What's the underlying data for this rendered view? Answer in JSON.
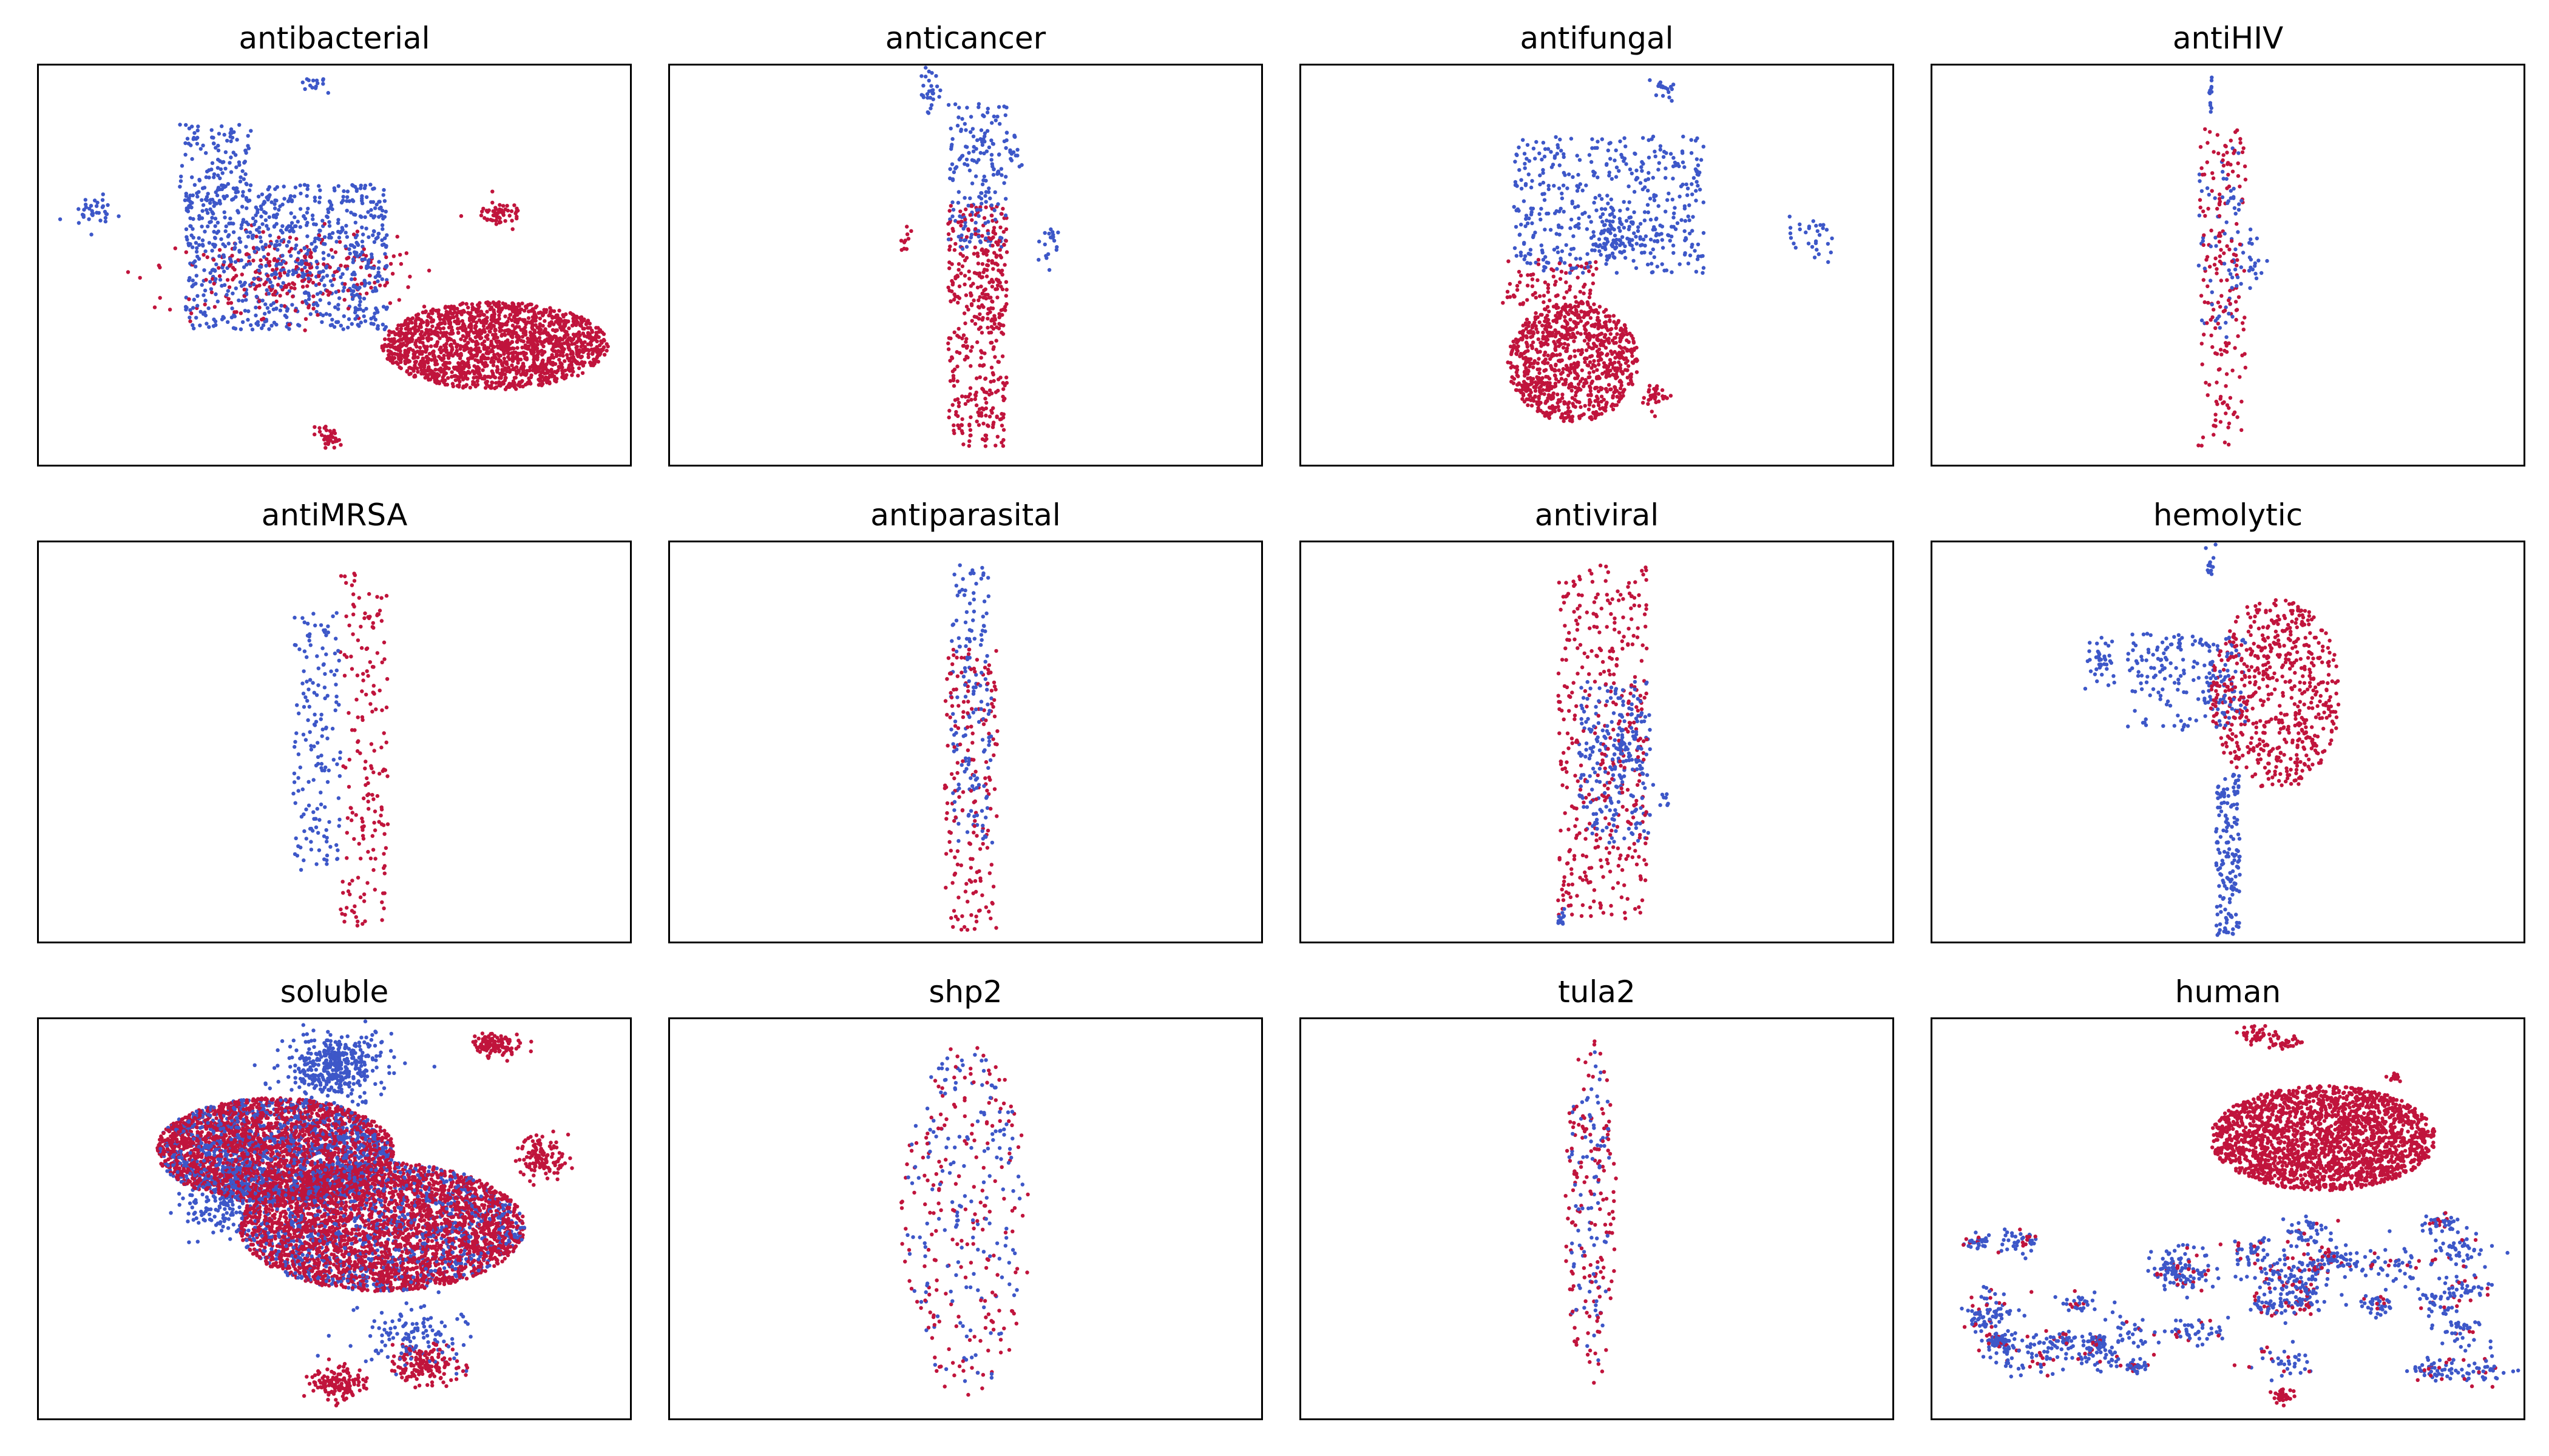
{
  "colors": {
    "positive": "#c0143c",
    "negative": "#3d57c8"
  },
  "chart_data": [
    {
      "type": "scatter",
      "title": "antibacterial",
      "grid": false,
      "axes_ticks": false,
      "clusters": [
        {
          "cls": "negative",
          "cx": 0.42,
          "cy": 0.52,
          "sx": 0.17,
          "sy": 0.18,
          "n": 800,
          "dist": "uniform"
        },
        {
          "cls": "positive",
          "cx": 0.42,
          "cy": 0.48,
          "sx": 0.09,
          "sy": 0.05,
          "n": 260,
          "dist": "gauss"
        },
        {
          "cls": "positive",
          "cx": 0.77,
          "cy": 0.3,
          "sx": 0.19,
          "sy": 0.11,
          "n": 1700,
          "dist": "ellipse"
        },
        {
          "cls": "negative",
          "cx": 0.1,
          "cy": 0.63,
          "sx": 0.02,
          "sy": 0.015,
          "n": 35,
          "dist": "gauss"
        },
        {
          "cls": "negative",
          "cx": 0.47,
          "cy": 0.95,
          "sx": 0.01,
          "sy": 0.01,
          "n": 15,
          "dist": "gauss"
        },
        {
          "cls": "positive",
          "cx": 0.78,
          "cy": 0.63,
          "sx": 0.015,
          "sy": 0.015,
          "n": 60,
          "dist": "gauss"
        },
        {
          "cls": "positive",
          "cx": 0.49,
          "cy": 0.07,
          "sx": 0.01,
          "sy": 0.015,
          "n": 40,
          "dist": "gauss"
        },
        {
          "cls": "negative",
          "cx": 0.3,
          "cy": 0.75,
          "sx": 0.06,
          "sy": 0.1,
          "n": 120,
          "dist": "uniform"
        }
      ]
    },
    {
      "type": "scatter",
      "title": "anticancer",
      "grid": false,
      "axes_ticks": false,
      "clusters": [
        {
          "cls": "positive",
          "cx": 0.52,
          "cy": 0.35,
          "sx": 0.05,
          "sy": 0.3,
          "n": 420,
          "dist": "uniform"
        },
        {
          "cls": "negative",
          "cx": 0.52,
          "cy": 0.72,
          "sx": 0.05,
          "sy": 0.18,
          "n": 180,
          "dist": "uniform"
        },
        {
          "cls": "negative",
          "cx": 0.44,
          "cy": 0.93,
          "sx": 0.008,
          "sy": 0.03,
          "n": 30,
          "dist": "gauss"
        },
        {
          "cls": "negative",
          "cx": 0.64,
          "cy": 0.55,
          "sx": 0.01,
          "sy": 0.03,
          "n": 20,
          "dist": "gauss"
        },
        {
          "cls": "positive",
          "cx": 0.4,
          "cy": 0.56,
          "sx": 0.005,
          "sy": 0.02,
          "n": 10,
          "dist": "gauss"
        },
        {
          "cls": "negative",
          "cx": 0.58,
          "cy": 0.78,
          "sx": 0.008,
          "sy": 0.02,
          "n": 15,
          "dist": "gauss"
        }
      ]
    },
    {
      "type": "scatter",
      "title": "antifungal",
      "grid": false,
      "axes_ticks": false,
      "clusters": [
        {
          "cls": "negative",
          "cx": 0.52,
          "cy": 0.65,
          "sx": 0.16,
          "sy": 0.17,
          "n": 450,
          "dist": "uniform"
        },
        {
          "cls": "negative",
          "cx": 0.53,
          "cy": 0.58,
          "sx": 0.03,
          "sy": 0.03,
          "n": 70,
          "dist": "gauss"
        },
        {
          "cls": "positive",
          "cx": 0.46,
          "cy": 0.26,
          "sx": 0.11,
          "sy": 0.15,
          "n": 900,
          "dist": "ellipse"
        },
        {
          "cls": "positive",
          "cx": 0.6,
          "cy": 0.17,
          "sx": 0.015,
          "sy": 0.02,
          "n": 30,
          "dist": "gauss"
        },
        {
          "cls": "negative",
          "cx": 0.86,
          "cy": 0.56,
          "sx": 0.02,
          "sy": 0.03,
          "n": 30,
          "dist": "gauss"
        },
        {
          "cls": "negative",
          "cx": 0.61,
          "cy": 0.94,
          "sx": 0.01,
          "sy": 0.015,
          "n": 20,
          "dist": "gauss"
        },
        {
          "cls": "positive",
          "cx": 0.42,
          "cy": 0.46,
          "sx": 0.08,
          "sy": 0.06,
          "n": 80,
          "dist": "uniform"
        }
      ]
    },
    {
      "type": "scatter",
      "title": "antiHIV",
      "grid": false,
      "axes_ticks": false,
      "clusters": [
        {
          "cls": "positive",
          "cx": 0.49,
          "cy": 0.45,
          "sx": 0.04,
          "sy": 0.4,
          "n": 180,
          "dist": "uniform"
        },
        {
          "cls": "negative",
          "cx": 0.49,
          "cy": 0.55,
          "sx": 0.04,
          "sy": 0.24,
          "n": 70,
          "dist": "uniform"
        },
        {
          "cls": "negative",
          "cx": 0.54,
          "cy": 0.52,
          "sx": 0.01,
          "sy": 0.03,
          "n": 20,
          "dist": "gauss"
        },
        {
          "cls": "negative",
          "cx": 0.47,
          "cy": 0.92,
          "sx": 0.003,
          "sy": 0.05,
          "n": 12,
          "dist": "uniform"
        }
      ]
    },
    {
      "type": "scatter",
      "title": "antiMRSA",
      "grid": false,
      "axes_ticks": false,
      "clusters": [
        {
          "cls": "positive",
          "cx": 0.55,
          "cy": 0.48,
          "sx": 0.04,
          "sy": 0.44,
          "n": 180,
          "dist": "uniform"
        },
        {
          "cls": "negative",
          "cx": 0.47,
          "cy": 0.5,
          "sx": 0.04,
          "sy": 0.33,
          "n": 160,
          "dist": "uniform"
        }
      ]
    },
    {
      "type": "scatter",
      "title": "antiparasital",
      "grid": false,
      "axes_ticks": false,
      "clusters": [
        {
          "cls": "negative",
          "cx": 0.51,
          "cy": 0.6,
          "sx": 0.035,
          "sy": 0.35,
          "n": 160,
          "dist": "uniform"
        },
        {
          "cls": "positive",
          "cx": 0.51,
          "cy": 0.38,
          "sx": 0.045,
          "sy": 0.35,
          "n": 180,
          "dist": "uniform"
        }
      ]
    },
    {
      "type": "scatter",
      "title": "antiviral",
      "grid": false,
      "axes_ticks": false,
      "clusters": [
        {
          "cls": "positive",
          "cx": 0.51,
          "cy": 0.5,
          "sx": 0.075,
          "sy": 0.44,
          "n": 400,
          "dist": "uniform"
        },
        {
          "cls": "negative",
          "cx": 0.53,
          "cy": 0.45,
          "sx": 0.06,
          "sy": 0.2,
          "n": 200,
          "dist": "uniform"
        },
        {
          "cls": "negative",
          "cx": 0.54,
          "cy": 0.48,
          "sx": 0.02,
          "sy": 0.05,
          "n": 60,
          "dist": "gauss"
        },
        {
          "cls": "negative",
          "cx": 0.44,
          "cy": 0.06,
          "sx": 0.003,
          "sy": 0.015,
          "n": 12,
          "dist": "gauss"
        },
        {
          "cls": "negative",
          "cx": 0.61,
          "cy": 0.36,
          "sx": 0.008,
          "sy": 0.015,
          "n": 8,
          "dist": "gauss"
        }
      ]
    },
    {
      "type": "scatter",
      "title": "hemolytic",
      "grid": false,
      "axes_ticks": false,
      "clusters": [
        {
          "cls": "positive",
          "cx": 0.58,
          "cy": 0.62,
          "sx": 0.11,
          "sy": 0.24,
          "n": 600,
          "dist": "ellipse"
        },
        {
          "cls": "negative",
          "cx": 0.43,
          "cy": 0.65,
          "sx": 0.1,
          "sy": 0.12,
          "n": 200,
          "dist": "uniform"
        },
        {
          "cls": "negative",
          "cx": 0.29,
          "cy": 0.7,
          "sx": 0.012,
          "sy": 0.025,
          "n": 40,
          "dist": "gauss"
        },
        {
          "cls": "negative",
          "cx": 0.5,
          "cy": 0.22,
          "sx": 0.02,
          "sy": 0.2,
          "n": 160,
          "dist": "uniform"
        },
        {
          "cls": "negative",
          "cx": 0.47,
          "cy": 0.94,
          "sx": 0.005,
          "sy": 0.02,
          "n": 12,
          "dist": "gauss"
        }
      ]
    },
    {
      "type": "scatter",
      "title": "soluble",
      "grid": false,
      "axes_ticks": false,
      "clusters": [
        {
          "cls": "positive",
          "cx": 0.4,
          "cy": 0.67,
          "sx": 0.2,
          "sy": 0.13,
          "n": 2200,
          "dist": "ellipse"
        },
        {
          "cls": "positive",
          "cx": 0.58,
          "cy": 0.48,
          "sx": 0.24,
          "sy": 0.16,
          "n": 3000,
          "dist": "ellipse"
        },
        {
          "cls": "negative",
          "cx": 0.4,
          "cy": 0.67,
          "sx": 0.2,
          "sy": 0.13,
          "n": 1100,
          "dist": "ellipse"
        },
        {
          "cls": "negative",
          "cx": 0.58,
          "cy": 0.48,
          "sx": 0.24,
          "sy": 0.16,
          "n": 1000,
          "dist": "ellipse"
        },
        {
          "cls": "negative",
          "cx": 0.5,
          "cy": 0.88,
          "sx": 0.04,
          "sy": 0.04,
          "n": 400,
          "dist": "gauss"
        },
        {
          "cls": "negative",
          "cx": 0.32,
          "cy": 0.56,
          "sx": 0.04,
          "sy": 0.05,
          "n": 250,
          "dist": "gauss"
        },
        {
          "cls": "positive",
          "cx": 0.77,
          "cy": 0.93,
          "sx": 0.02,
          "sy": 0.015,
          "n": 120,
          "dist": "gauss"
        },
        {
          "cls": "positive",
          "cx": 0.51,
          "cy": 0.09,
          "sx": 0.02,
          "sy": 0.02,
          "n": 140,
          "dist": "gauss"
        },
        {
          "cls": "positive",
          "cx": 0.65,
          "cy": 0.14,
          "sx": 0.03,
          "sy": 0.025,
          "n": 160,
          "dist": "gauss"
        },
        {
          "cls": "negative",
          "cx": 0.63,
          "cy": 0.21,
          "sx": 0.05,
          "sy": 0.04,
          "n": 120,
          "dist": "gauss"
        },
        {
          "cls": "positive",
          "cx": 0.85,
          "cy": 0.65,
          "sx": 0.02,
          "sy": 0.025,
          "n": 120,
          "dist": "gauss"
        },
        {
          "cls": "positive",
          "cx": 0.24,
          "cy": 0.7,
          "sx": 0.015,
          "sy": 0.025,
          "n": 60,
          "dist": "gauss"
        }
      ]
    },
    {
      "type": "scatter",
      "title": "shp2",
      "grid": false,
      "axes_ticks": false,
      "clusters": [
        {
          "cls": "positive",
          "cx": 0.5,
          "cy": 0.5,
          "sx": 0.11,
          "sy": 0.44,
          "n": 200,
          "dist": "ellipse"
        },
        {
          "cls": "negative",
          "cx": 0.5,
          "cy": 0.5,
          "sx": 0.1,
          "sy": 0.44,
          "n": 170,
          "dist": "ellipse"
        }
      ]
    },
    {
      "type": "scatter",
      "title": "tula2",
      "grid": false,
      "axes_ticks": false,
      "clusters": [
        {
          "cls": "positive",
          "cx": 0.49,
          "cy": 0.5,
          "sx": 0.045,
          "sy": 0.45,
          "n": 150,
          "dist": "ellipse"
        },
        {
          "cls": "negative",
          "cx": 0.49,
          "cy": 0.5,
          "sx": 0.04,
          "sy": 0.42,
          "n": 90,
          "dist": "ellipse"
        }
      ]
    },
    {
      "type": "scatter",
      "title": "human",
      "grid": false,
      "axes_ticks": false,
      "clusters": [
        {
          "cls": "positive",
          "cx": 0.66,
          "cy": 0.7,
          "sx": 0.19,
          "sy": 0.13,
          "n": 2100,
          "dist": "ellipse"
        },
        {
          "cls": "negative",
          "cx": 0.45,
          "cy": 0.3,
          "sx": 0.38,
          "sy": 0.2,
          "n": 1200,
          "dist": "clumps"
        },
        {
          "cls": "positive",
          "cx": 0.45,
          "cy": 0.3,
          "sx": 0.38,
          "sy": 0.2,
          "n": 300,
          "dist": "clumps"
        },
        {
          "cls": "positive",
          "cx": 0.59,
          "cy": 0.94,
          "sx": 0.02,
          "sy": 0.01,
          "n": 40,
          "dist": "gauss"
        },
        {
          "cls": "positive",
          "cx": 0.54,
          "cy": 0.96,
          "sx": 0.015,
          "sy": 0.01,
          "n": 30,
          "dist": "gauss"
        },
        {
          "cls": "positive",
          "cx": 0.59,
          "cy": 0.06,
          "sx": 0.012,
          "sy": 0.01,
          "n": 35,
          "dist": "gauss"
        },
        {
          "cls": "positive",
          "cx": 0.78,
          "cy": 0.85,
          "sx": 0.008,
          "sy": 0.008,
          "n": 12,
          "dist": "gauss"
        }
      ]
    }
  ]
}
